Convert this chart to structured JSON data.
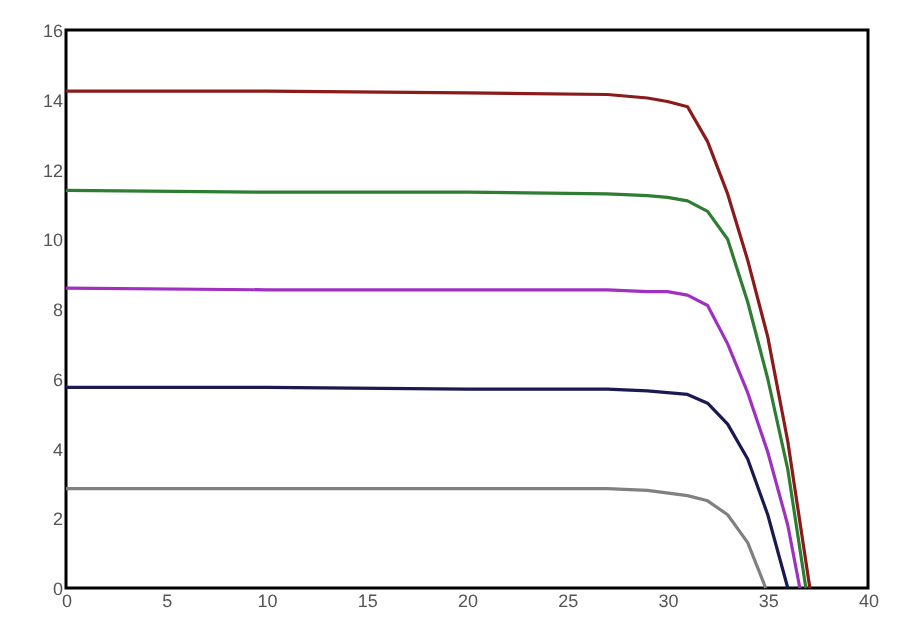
{
  "chart_data": {
    "type": "line",
    "xlim": [
      0,
      40
    ],
    "ylim": [
      0,
      16
    ],
    "xticks": [
      0,
      5,
      10,
      15,
      20,
      25,
      30,
      35,
      40
    ],
    "yticks": [
      0,
      2,
      4,
      6,
      8,
      10,
      12,
      14,
      16
    ],
    "grid": false,
    "legend": false,
    "marker": "none",
    "line_style": "solid",
    "series": [
      {
        "color": "#8b1a1a",
        "x": [
          0,
          10,
          20,
          27,
          29,
          30,
          31,
          32,
          33,
          34,
          35,
          36,
          37.1
        ],
        "values": [
          14.25,
          14.25,
          14.2,
          14.15,
          14.05,
          13.95,
          13.8,
          12.8,
          11.3,
          9.4,
          7.2,
          4.2,
          0
        ]
      },
      {
        "color": "#2e7d32",
        "x": [
          0,
          10,
          20,
          27,
          29,
          30,
          31,
          32,
          33,
          34,
          35,
          36,
          36.9
        ],
        "values": [
          11.4,
          11.35,
          11.35,
          11.3,
          11.25,
          11.2,
          11.1,
          10.8,
          10.0,
          8.2,
          6.0,
          3.4,
          0
        ]
      },
      {
        "color": "#a030c0",
        "x": [
          0,
          10,
          20,
          27,
          29,
          30,
          31,
          32,
          33,
          34,
          35,
          36,
          36.6
        ],
        "values": [
          8.6,
          8.55,
          8.55,
          8.55,
          8.5,
          8.5,
          8.4,
          8.1,
          7.0,
          5.6,
          3.9,
          1.8,
          0
        ]
      },
      {
        "color": "#1a1a50",
        "x": [
          0,
          10,
          20,
          27,
          29,
          30,
          31,
          32,
          33,
          34,
          35,
          36
        ],
        "values": [
          5.75,
          5.75,
          5.7,
          5.7,
          5.65,
          5.6,
          5.55,
          5.3,
          4.7,
          3.7,
          2.1,
          0
        ]
      },
      {
        "color": "#808080",
        "x": [
          0,
          10,
          20,
          27,
          29,
          31,
          32,
          33,
          34,
          34.9
        ],
        "values": [
          2.85,
          2.85,
          2.85,
          2.85,
          2.8,
          2.65,
          2.5,
          2.1,
          1.3,
          0
        ]
      }
    ]
  }
}
